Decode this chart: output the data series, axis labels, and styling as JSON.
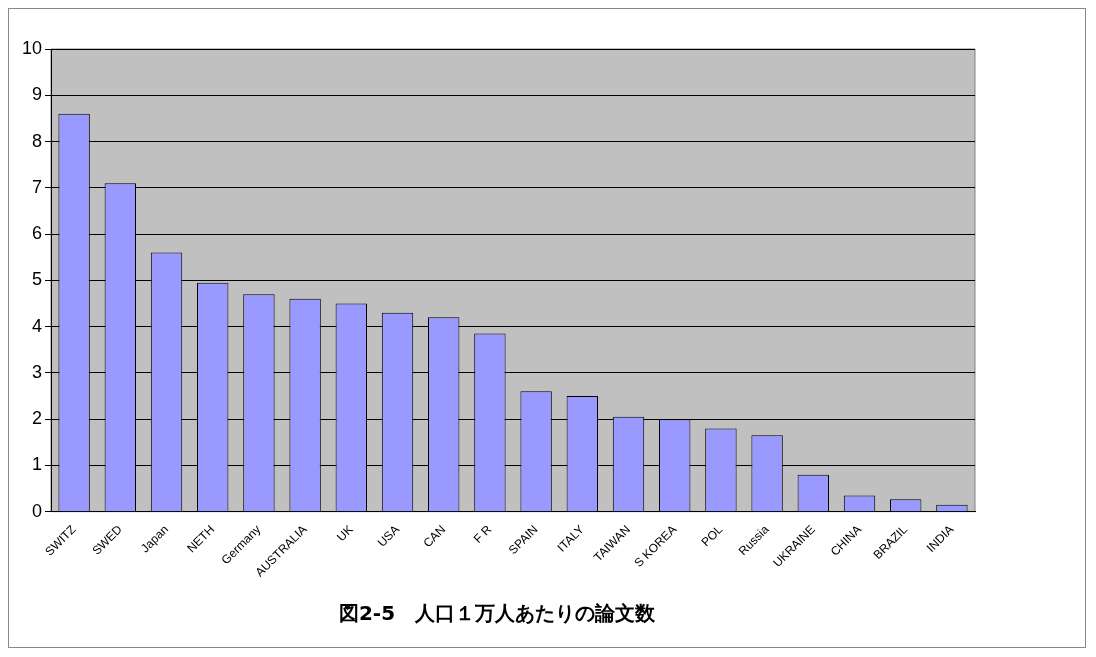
{
  "chart_data": {
    "type": "bar",
    "title": "図2-5　人口１万人あたりの論文数",
    "categories": [
      "SWITZ",
      "SWED",
      "Japan",
      "NETH",
      "Germany",
      "AUSTRALIA",
      "UK",
      "USA",
      "CAN",
      "F R",
      "SPAIN",
      "ITALY",
      "TAIWAN",
      "S KOREA",
      "POL",
      "Russia",
      "UKRAINE",
      "CHINA",
      "BRAZIL",
      "INDIA"
    ],
    "values": [
      8.6,
      7.1,
      5.6,
      4.95,
      4.7,
      4.6,
      4.5,
      4.3,
      4.2,
      3.85,
      2.6,
      2.5,
      2.05,
      2.0,
      1.8,
      1.65,
      0.8,
      0.35,
      0.27,
      0.15
    ],
    "color": "#9999ff",
    "ylim": [
      0,
      10
    ],
    "yticks": [
      0,
      1,
      2,
      3,
      4,
      5,
      6,
      7,
      8,
      9,
      10
    ],
    "grid": "y",
    "legend": false
  }
}
